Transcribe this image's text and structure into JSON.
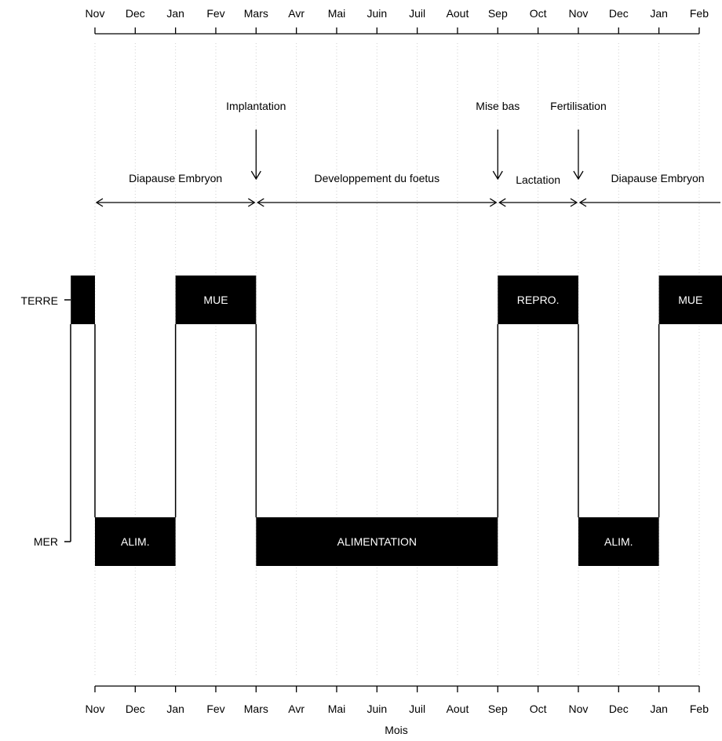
{
  "months": [
    "Nov",
    "Dec",
    "Jan",
    "Fev",
    "Mars",
    "Avr",
    "Mai",
    "Juin",
    "Juil",
    "Aout",
    "Sep",
    "Oct",
    "Nov",
    "Dec",
    "Jan",
    "Feb"
  ],
  "xlabel": "Mois",
  "levels": {
    "terre": "TERRE",
    "mer": "MER"
  },
  "events": [
    {
      "label": "Implantation",
      "at": 4
    },
    {
      "label": "Mise bas",
      "at": 10
    },
    {
      "label": "Fertilisation",
      "at": 12
    }
  ],
  "phases": [
    {
      "label": "Diapause Embryon",
      "from": 0,
      "to": 4
    },
    {
      "label": "Developpement du foetus",
      "from": 4,
      "to": 10
    },
    {
      "label": "Lactation",
      "from": 10,
      "to": 12
    },
    {
      "label": "Diapause Embryon",
      "from": 12,
      "to": 15.6
    }
  ],
  "activities": [
    {
      "label": "",
      "level": "terre",
      "from": -0.6,
      "to": 0
    },
    {
      "label": "ALIM.",
      "level": "mer",
      "from": 0,
      "to": 2
    },
    {
      "label": "MUE",
      "level": "terre",
      "from": 2,
      "to": 4
    },
    {
      "label": "ALIMENTATION",
      "level": "mer",
      "from": 4,
      "to": 10
    },
    {
      "label": "REPRO.",
      "level": "terre",
      "from": 10,
      "to": 12
    },
    {
      "label": "ALIM.",
      "level": "mer",
      "from": 12,
      "to": 14
    },
    {
      "label": "MUE",
      "level": "terre",
      "from": 14,
      "to": 15.6
    }
  ]
}
